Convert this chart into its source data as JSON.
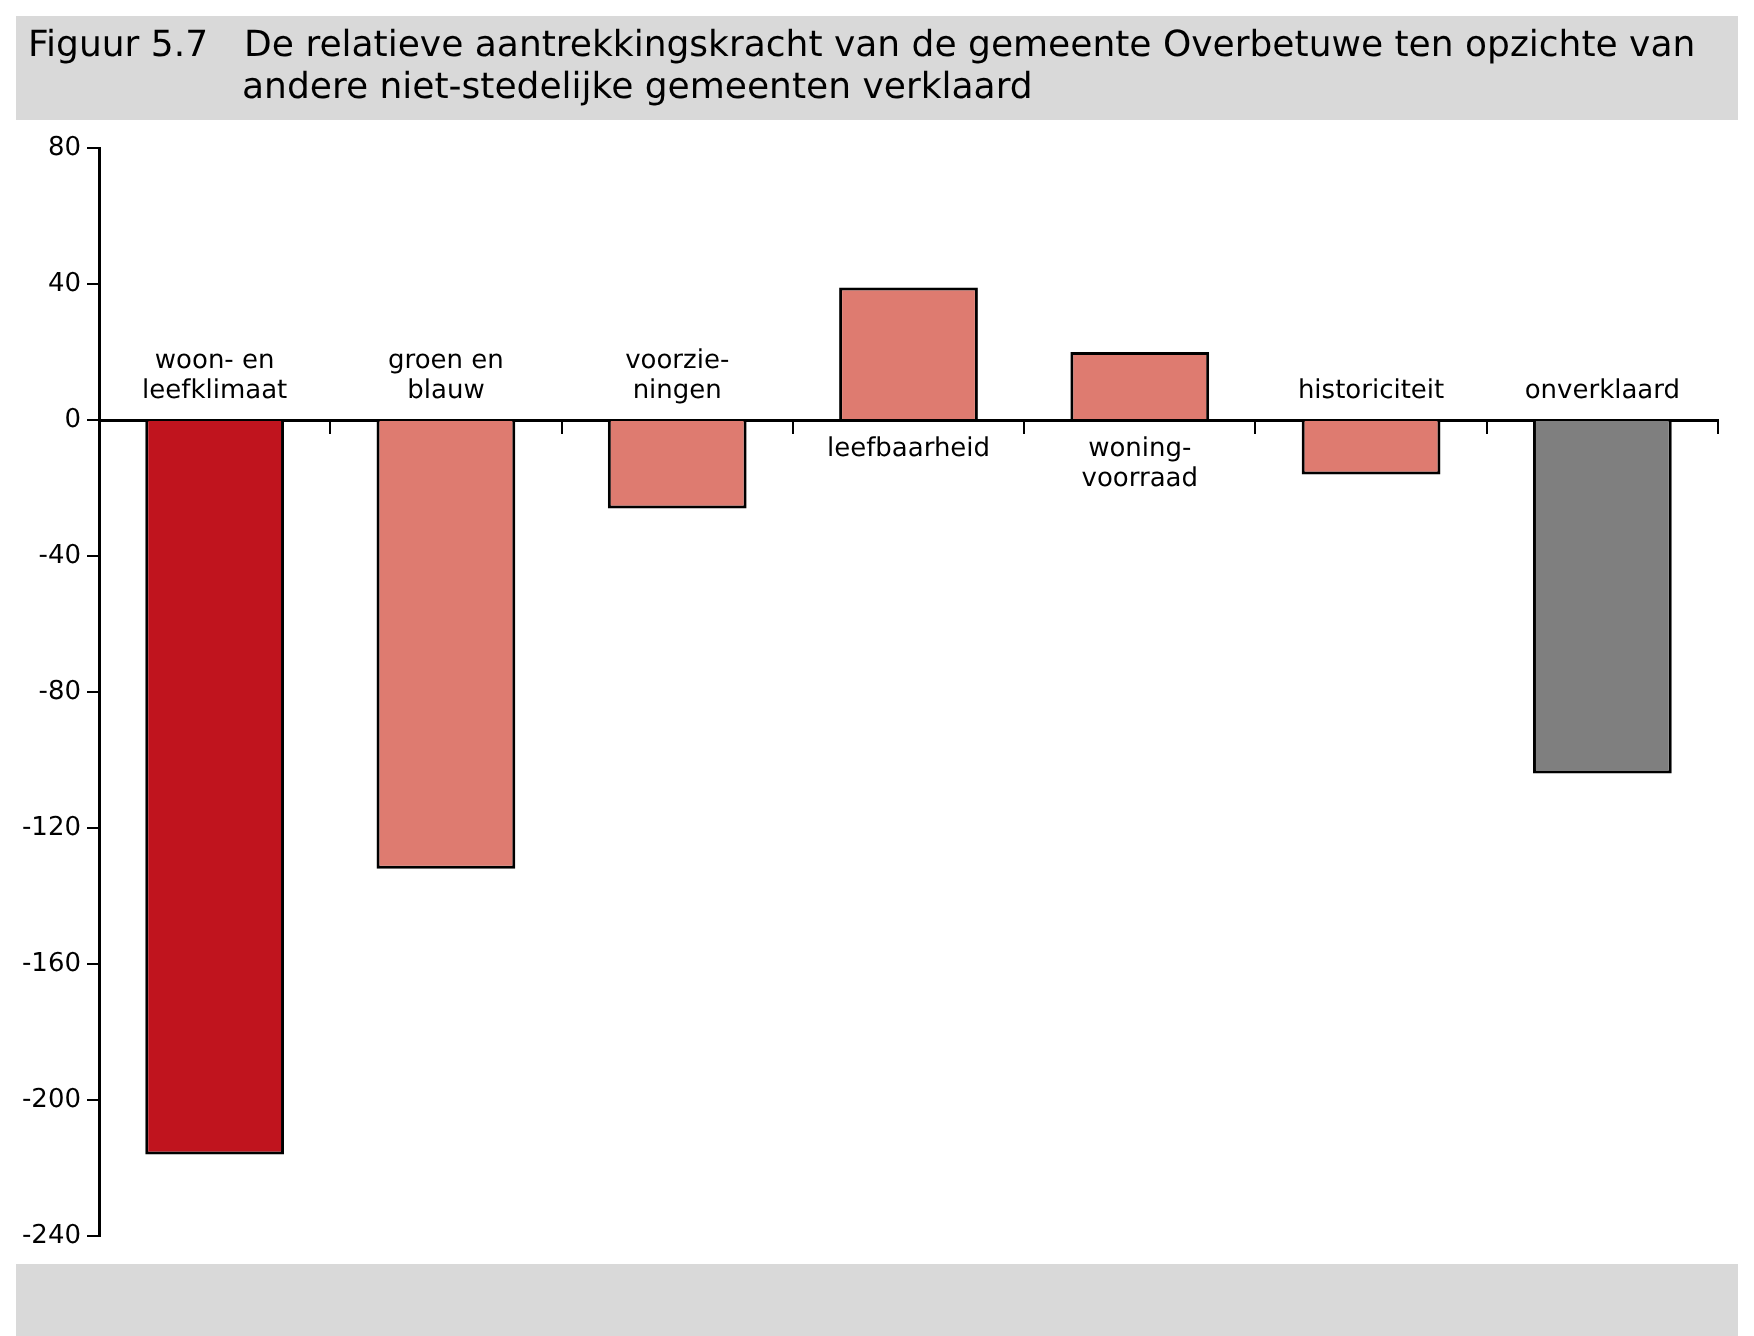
{
  "chart_data": {
    "type": "bar",
    "title": "Figuur 5.7 De relatieve aantrekkingskracht van de gemeente Overbetuwe ten opzichte van andere niet-stedelijke gemeenten verklaard",
    "categories": [
      "woon- en\nleefklimaat",
      "groen en\nblauw",
      "voorzie-\nningen",
      "leefbaarheid",
      "woning-\nvoorraad",
      "historiciteit",
      "onverklaard"
    ],
    "values": [
      -216,
      -132,
      -26,
      39,
      20,
      -16,
      -104
    ],
    "colors": [
      "#c0141e",
      "#de7b70",
      "#de7b70",
      "#de7b70",
      "#de7b70",
      "#de7b70",
      "#7f7f7f"
    ],
    "ylim": [
      -240,
      80
    ],
    "yticks": [
      -240,
      -200,
      -160,
      -120,
      -80,
      -40,
      0,
      40,
      80
    ],
    "grid": false,
    "legend": false
  }
}
